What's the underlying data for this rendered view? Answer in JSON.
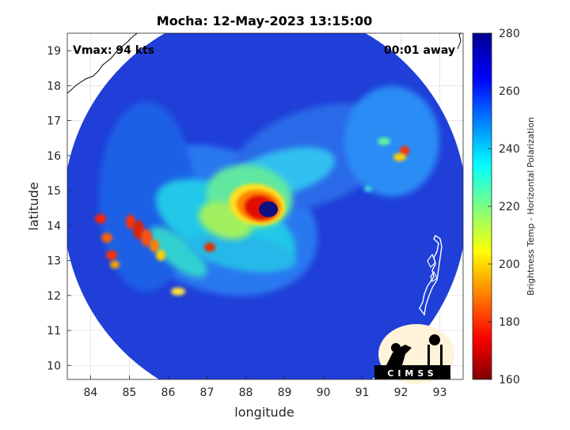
{
  "chart_data": {
    "type": "heatmap",
    "title": "Mocha: 12-May-2023 13:15:00",
    "xlabel": "longitude",
    "ylabel": "latitude",
    "xlim": [
      83.4,
      93.6
    ],
    "ylim": [
      9.6,
      19.5
    ],
    "x_ticks": [
      "84",
      "85",
      "86",
      "87",
      "88",
      "89",
      "90",
      "91",
      "92",
      "93"
    ],
    "y_ticks": [
      "10",
      "11",
      "12",
      "13",
      "14",
      "15",
      "16",
      "17",
      "18",
      "19"
    ],
    "grid": true,
    "annotations": {
      "vmax": "Vmax: 94 kts",
      "time_offset": "00:01 away"
    },
    "colorbar": {
      "label": "Brightness Temp - Horizontal Polarization",
      "range": [
        160,
        280
      ],
      "ticks": [
        "160",
        "180",
        "200",
        "220",
        "240",
        "260",
        "280"
      ],
      "colormap": "jet"
    },
    "storm_center": {
      "lon": 88.5,
      "lat": 14.6
    },
    "swath_center": {
      "lon": 88.5,
      "lat": 14.5
    },
    "swath_radius_deg": 5.2,
    "logo": "CIMSS",
    "colors": {
      "background_tb": "#1f3fd8",
      "coast": "#000000"
    }
  }
}
